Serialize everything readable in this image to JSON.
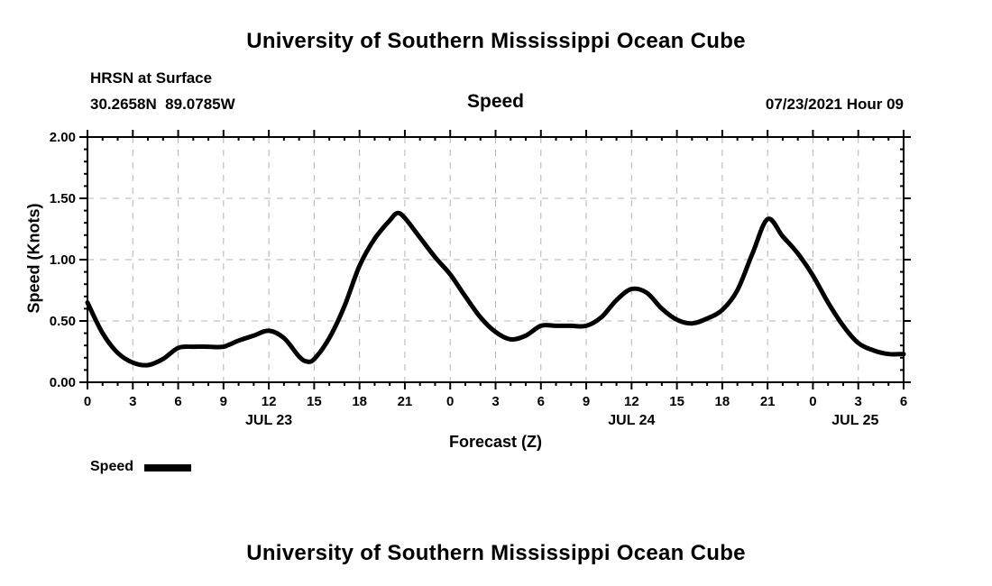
{
  "page": {
    "title_top": "University of Southern Mississippi Ocean Cube",
    "title_bottom": "University of Southern Mississippi Ocean Cube"
  },
  "header": {
    "station": "HRSN at Surface",
    "coordinates": "30.2658N  89.0785W",
    "plot_title": "Speed",
    "datetime": "07/23/2021 Hour 09"
  },
  "legend": {
    "label": "Speed"
  },
  "chart_data": {
    "type": "line",
    "title": "Speed",
    "xlabel": "Forecast (Z)",
    "ylabel": "Speed (Knots)",
    "x_axis": "forecast hours from 07/23/2021 00Z",
    "xlim": [
      0,
      54
    ],
    "ylim": [
      0.0,
      2.0
    ],
    "y_major_step": 0.5,
    "y_minor_step": 0.1,
    "y_tick_labels": [
      "0.00",
      "0.50",
      "1.00",
      "1.50",
      "2.00"
    ],
    "x_major_step_hours": 3,
    "x_minor_step_hours": 1,
    "x_tick_hours": [
      0,
      3,
      6,
      9,
      12,
      15,
      18,
      21,
      24,
      27,
      30,
      33,
      36,
      39,
      42,
      45,
      48,
      51,
      54
    ],
    "x_tick_labels": [
      "0",
      "3",
      "6",
      "9",
      "12",
      "15",
      "18",
      "21",
      "0",
      "3",
      "6",
      "9",
      "12",
      "15",
      "18",
      "21",
      "0",
      "3",
      "6"
    ],
    "day_labels": [
      {
        "text": "JUL 23",
        "hour": 12
      },
      {
        "text": "JUL 24",
        "hour": 36
      },
      {
        "text": "JUL 25",
        "hour": 50.8
      }
    ],
    "grid": "dashed",
    "legend_position": "bottom-left",
    "line_color": "#000000",
    "grid_color": "#b3b3b3",
    "series": [
      {
        "name": "Speed",
        "x": [
          0,
          1,
          2,
          3,
          4,
          5,
          6,
          7,
          8,
          9,
          10,
          11,
          12,
          13,
          14,
          14.5,
          15,
          16,
          17,
          18,
          19,
          20,
          20.5,
          21,
          22,
          23,
          24,
          25,
          26,
          27,
          28,
          29,
          30,
          31,
          32,
          33,
          34,
          35,
          36,
          37,
          38,
          39,
          40,
          41,
          42,
          43,
          44,
          45,
          46,
          47,
          48,
          49,
          50,
          51,
          52,
          53,
          54
        ],
        "y": [
          0.65,
          0.4,
          0.24,
          0.16,
          0.14,
          0.19,
          0.28,
          0.29,
          0.29,
          0.29,
          0.34,
          0.38,
          0.42,
          0.36,
          0.21,
          0.17,
          0.19,
          0.36,
          0.62,
          0.95,
          1.17,
          1.32,
          1.38,
          1.34,
          1.18,
          1.02,
          0.88,
          0.7,
          0.53,
          0.41,
          0.35,
          0.38,
          0.46,
          0.46,
          0.46,
          0.46,
          0.53,
          0.67,
          0.76,
          0.73,
          0.6,
          0.51,
          0.48,
          0.52,
          0.59,
          0.75,
          1.05,
          1.33,
          1.19,
          1.05,
          0.87,
          0.65,
          0.46,
          0.32,
          0.26,
          0.23,
          0.23
        ]
      }
    ]
  }
}
